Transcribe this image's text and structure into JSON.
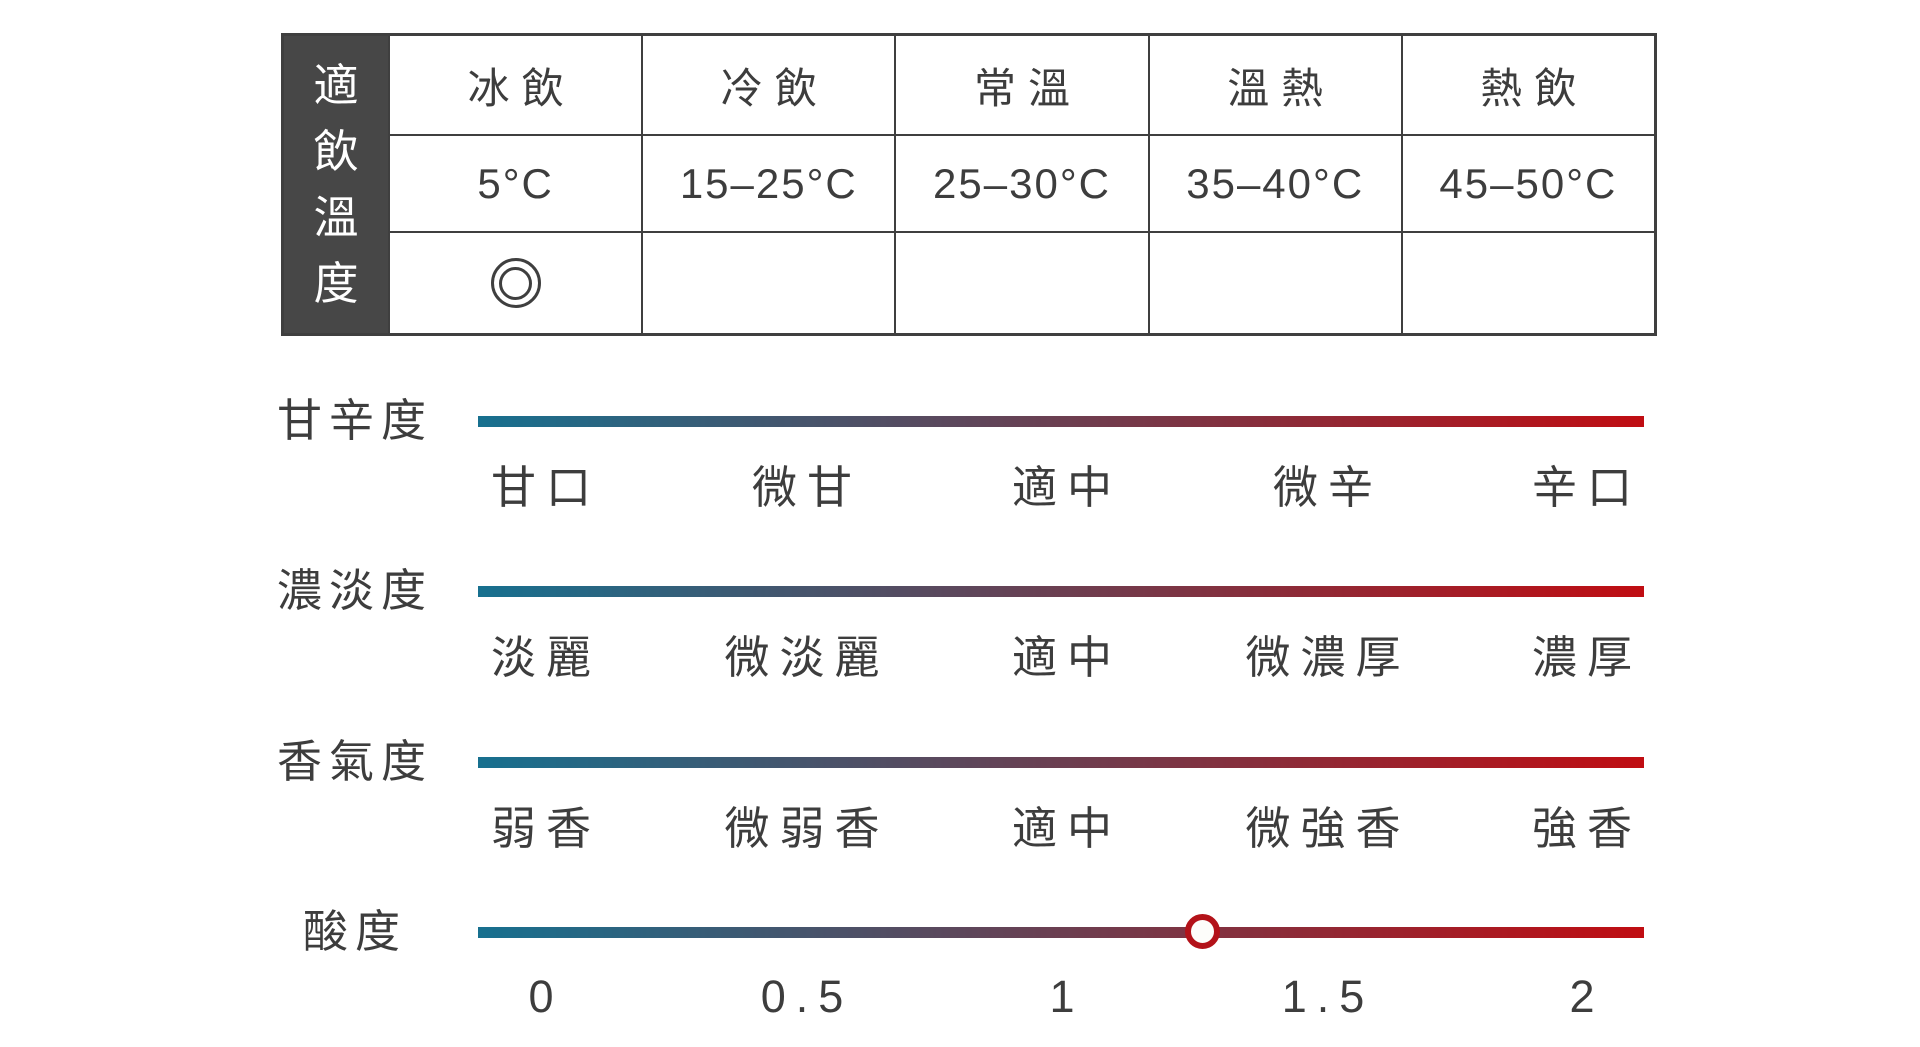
{
  "temperature_table": {
    "row_header_chars": [
      "適",
      "飲",
      "溫",
      "度"
    ],
    "row_header": "適飲溫度",
    "columns": [
      {
        "label": "冰飲",
        "temp": "5°C",
        "recommended": true
      },
      {
        "label": "冷飲",
        "temp": "15–25°C",
        "recommended": false
      },
      {
        "label": "常溫",
        "temp": "25–30°C",
        "recommended": false
      },
      {
        "label": "溫熱",
        "temp": "35–40°C",
        "recommended": false
      },
      {
        "label": "熱飲",
        "temp": "45–50°C",
        "recommended": false
      }
    ]
  },
  "sliders": [
    {
      "name": "甘辛度",
      "levels": [
        "甘口",
        "微甘",
        "適中",
        "微辛",
        "辛口"
      ],
      "marker_value": null
    },
    {
      "name": "濃淡度",
      "levels": [
        "淡麗",
        "微淡麗",
        "適中",
        "微濃厚",
        "濃厚"
      ],
      "marker_value": null
    },
    {
      "name": "香氣度",
      "levels": [
        "弱香",
        "微弱香",
        "適中",
        "微強香",
        "強香"
      ],
      "marker_value": null
    },
    {
      "name": "酸度",
      "levels": [
        "0",
        "0.5",
        "1",
        "1.5",
        "2"
      ],
      "marker_value": 1.27
    }
  ],
  "colors": {
    "header_background": "#474747",
    "table_border": "#3f3f3f",
    "text": "#3d3d3d",
    "bar_gradient_start": "#17708f",
    "bar_gradient_end": "#c00d12",
    "handle_ring": "#b31219"
  },
  "chart_data": [
    {
      "type": "table",
      "title": "適飲溫度",
      "categories": [
        "冰飲",
        "冷飲",
        "常溫",
        "溫熱",
        "熱飲"
      ],
      "temperatures": [
        "5°C",
        "15–25°C",
        "25–30°C",
        "35–40°C",
        "45–50°C"
      ],
      "recommended": "冰飲"
    },
    {
      "type": "scale",
      "name": "甘辛度",
      "tick_labels": [
        "甘口",
        "微甘",
        "適中",
        "微辛",
        "辛口"
      ],
      "value": null
    },
    {
      "type": "scale",
      "name": "濃淡度",
      "tick_labels": [
        "淡麗",
        "微淡麗",
        "適中",
        "微濃厚",
        "濃厚"
      ],
      "value": null
    },
    {
      "type": "scale",
      "name": "香氣度",
      "tick_labels": [
        "弱香",
        "微弱香",
        "適中",
        "微強香",
        "強香"
      ],
      "value": null
    },
    {
      "type": "scale",
      "name": "酸度",
      "tick_labels": [
        "0",
        "0.5",
        "1",
        "1.5",
        "2"
      ],
      "xlim": [
        0,
        2
      ],
      "value": 1.27
    }
  ]
}
